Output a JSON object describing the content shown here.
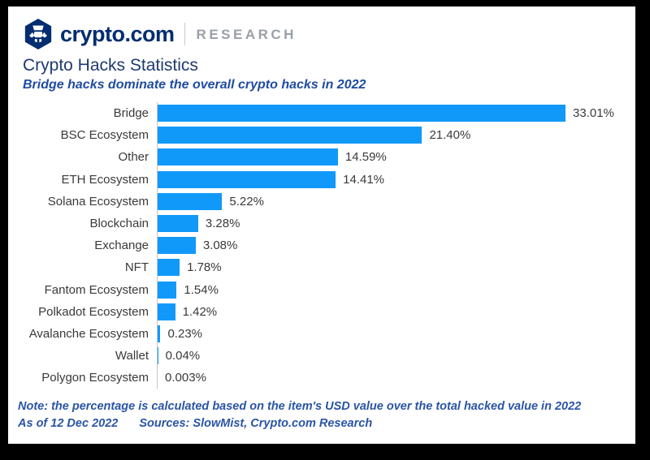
{
  "header": {
    "brand": "crypto.com",
    "brand_suffix": "RESEARCH"
  },
  "page": {
    "title": "Crypto Hacks Statistics",
    "subtitle": "Bridge hacks dominate the overall crypto hacks in 2022"
  },
  "chart_data": {
    "type": "bar",
    "orientation": "horizontal",
    "title": "Crypto Hacks Statistics",
    "subtitle": "Bridge hacks dominate the overall crypto hacks in 2022",
    "categories": [
      "Bridge",
      "BSC Ecosystem",
      "Other",
      "ETH Ecosystem",
      "Solana Ecosystem",
      "Blockchain",
      "Exchange",
      "NFT",
      "Fantom Ecosystem",
      "Polkadot Ecosystem",
      "Avalanche Ecosystem",
      "Wallet",
      "Polygon Ecosystem"
    ],
    "values": [
      33.01,
      21.4,
      14.59,
      14.41,
      5.22,
      3.28,
      3.08,
      1.78,
      1.54,
      1.42,
      0.23,
      0.04,
      0.003
    ],
    "value_labels": [
      "33.01%",
      "21.40%",
      "14.59%",
      "14.41%",
      "5.22%",
      "3.28%",
      "3.08%",
      "1.78%",
      "1.54%",
      "1.42%",
      "0.23%",
      "0.04%",
      "0.003%"
    ],
    "xlabel": "",
    "ylabel": "",
    "xlim": [
      0,
      33.01
    ],
    "grid": false,
    "legend": false,
    "bar_color": "#1199FA",
    "axis_line_color": "#c6c6c6"
  },
  "footer": {
    "note": "Note: the percentage is calculated based on the item's USD value over the total hacked value in 2022",
    "as_of": "As of 12 Dec 2022",
    "sources": "Sources: SlowMist, Crypto.com Research"
  },
  "colors": {
    "bar_blue": "#1199FA",
    "brand_navy": "#032d70",
    "research_gray": "#9aa0a8",
    "subtitle_blue": "#1f4ca0",
    "note_blue": "#2a55a5"
  }
}
